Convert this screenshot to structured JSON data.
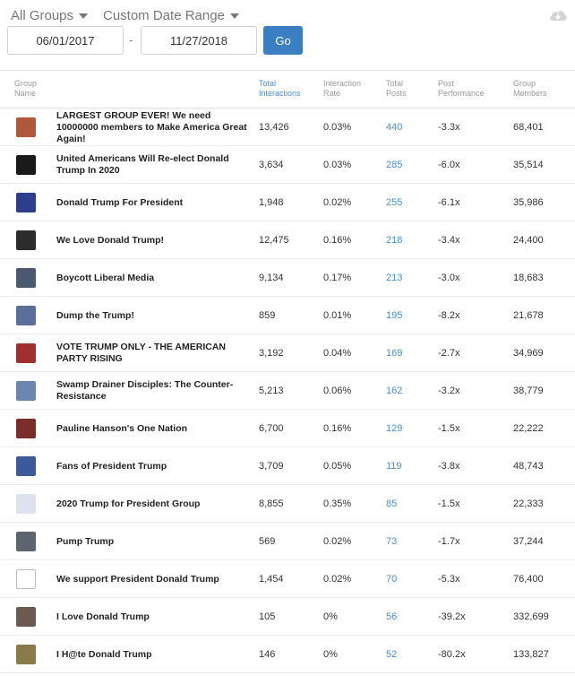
{
  "filters": {
    "groups_label": "All Groups",
    "range_label": "Custom Date Range",
    "start_date": "06/01/2017",
    "separator": "-",
    "end_date": "11/27/2018",
    "go_label": "Go"
  },
  "columns": {
    "group_name": "Group\nName",
    "total_interactions": "Total\nInteractions",
    "interaction_rate": "Interaction\nRate",
    "total_posts": "Total\nPosts",
    "post_performance": "Post\nPerformance",
    "group_members": "Group\nMembers"
  },
  "rows": [
    {
      "name": "LARGEST GROUP EVER! We need 10000000 members to Make America Great Again!",
      "interactions": "13,426",
      "rate": "0.03%",
      "posts": "440",
      "performance": "-3.3x",
      "members": "68,401",
      "thumb_color": "#b0583a"
    },
    {
      "name": "United Americans Will Re-elect Donald Trump In 2020",
      "interactions": "3,634",
      "rate": "0.03%",
      "posts": "285",
      "performance": "-6.0x",
      "members": "35,514",
      "thumb_color": "#1a1a1a"
    },
    {
      "name": "Donald Trump For President",
      "interactions": "1,948",
      "rate": "0.02%",
      "posts": "255",
      "performance": "-6.1x",
      "members": "35,986",
      "thumb_color": "#2b3f8c"
    },
    {
      "name": "We Love Donald Trump!",
      "interactions": "12,475",
      "rate": "0.16%",
      "posts": "218",
      "performance": "-3.4x",
      "members": "24,400",
      "thumb_color": "#2c2c2c"
    },
    {
      "name": "Boycott Liberal Media",
      "interactions": "9,134",
      "rate": "0.17%",
      "posts": "213",
      "performance": "-3.0x",
      "members": "18,683",
      "thumb_color": "#4a5a70"
    },
    {
      "name": "Dump the Trump!",
      "interactions": "859",
      "rate": "0.01%",
      "posts": "195",
      "performance": "-8.2x",
      "members": "21,678",
      "thumb_color": "#5b6f9a"
    },
    {
      "name": "VOTE TRUMP ONLY - THE AMERICAN PARTY RISING",
      "interactions": "3,192",
      "rate": "0.04%",
      "posts": "169",
      "performance": "-2.7x",
      "members": "34,969",
      "thumb_color": "#a03030"
    },
    {
      "name": "Swamp Drainer Disciples: The Counter-Resistance",
      "interactions": "5,213",
      "rate": "0.06%",
      "posts": "162",
      "performance": "-3.2x",
      "members": "38,779",
      "thumb_color": "#6a87b0"
    },
    {
      "name": "Pauline Hanson's One Nation",
      "interactions": "6,700",
      "rate": "0.16%",
      "posts": "129",
      "performance": "-1.5x",
      "members": "22,222",
      "thumb_color": "#7a2e2a"
    },
    {
      "name": "Fans of President Trump",
      "interactions": "3,709",
      "rate": "0.05%",
      "posts": "119",
      "performance": "-3.8x",
      "members": "48,743",
      "thumb_color": "#3a5a9a"
    },
    {
      "name": "2020 Trump for President Group",
      "interactions": "8,855",
      "rate": "0.35%",
      "posts": "85",
      "performance": "-1.5x",
      "members": "22,333",
      "thumb_color": "#dde3ee"
    },
    {
      "name": "Pump Trump",
      "interactions": "569",
      "rate": "0.02%",
      "posts": "73",
      "performance": "-1.7x",
      "members": "37,244",
      "thumb_color": "#5c6470"
    },
    {
      "name": "We support President Donald Trump",
      "interactions": "1,454",
      "rate": "0.02%",
      "posts": "70",
      "performance": "-5.3x",
      "members": "76,400",
      "thumb_color": "#ffffff"
    },
    {
      "name": "I Love Donald Trump",
      "interactions": "105",
      "rate": "0%",
      "posts": "56",
      "performance": "-39.2x",
      "members": "332,699",
      "thumb_color": "#6b5a52"
    },
    {
      "name": "I H@te Donald Trump",
      "interactions": "146",
      "rate": "0%",
      "posts": "52",
      "performance": "-80.2x",
      "members": "133,827",
      "thumb_color": "#8a7a4a"
    }
  ]
}
